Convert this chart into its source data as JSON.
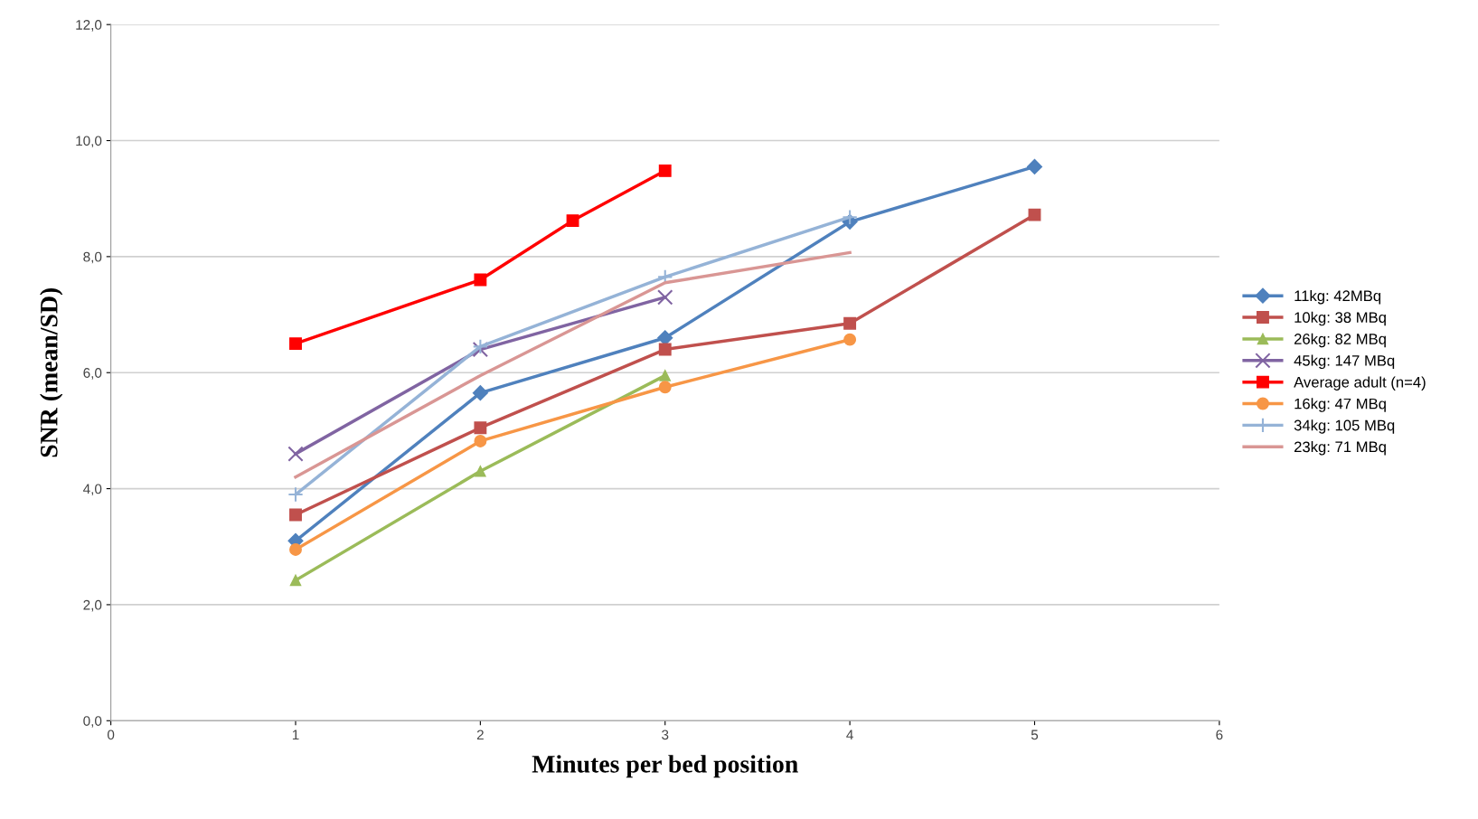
{
  "chart_data": {
    "type": "line",
    "xlabel": "Minutes per bed position",
    "ylabel": "SNR (mean/SD)",
    "xlim": [
      0,
      6
    ],
    "xticks": [
      0,
      1,
      2,
      3,
      4,
      5,
      6
    ],
    "ylim": [
      0,
      12
    ],
    "yticks": [
      {
        "value": 0,
        "label": "0,0"
      },
      {
        "value": 2,
        "label": "2,0"
      },
      {
        "value": 4,
        "label": "4,0"
      },
      {
        "value": 6,
        "label": "6,0"
      },
      {
        "value": 8,
        "label": "8,0"
      },
      {
        "value": 10,
        "label": "10,0"
      },
      {
        "value": 12,
        "label": "12,0"
      }
    ],
    "grid": "y",
    "legend": "right",
    "line_style": "solid",
    "series": [
      {
        "name": "11kg: 42MBq",
        "color": "#4f81bd",
        "marker": "diamond",
        "x": [
          1,
          2,
          3,
          4,
          5
        ],
        "values": [
          3.1,
          5.65,
          6.6,
          8.6,
          9.55
        ]
      },
      {
        "name": "10kg: 38 MBq",
        "color": "#c0504d",
        "marker": "square",
        "x": [
          1,
          2,
          3,
          4,
          5
        ],
        "values": [
          3.55,
          5.05,
          6.4,
          6.85,
          8.72
        ]
      },
      {
        "name": "26kg: 82 MBq",
        "color": "#9bbb59",
        "marker": "triangle",
        "x": [
          1,
          2,
          3
        ],
        "values": [
          2.42,
          4.3,
          5.95
        ]
      },
      {
        "name": "45kg: 147 MBq",
        "color": "#8064a2",
        "marker": "cross",
        "x": [
          1,
          2,
          3
        ],
        "values": [
          4.6,
          6.4,
          7.3
        ]
      },
      {
        "name": "Average adult (n=4)",
        "color": "#ff0000",
        "marker": "square",
        "x": [
          1,
          2,
          2.5,
          3
        ],
        "values": [
          6.5,
          7.6,
          8.62,
          9.48
        ]
      },
      {
        "name": "16kg: 47 MBq",
        "color": "#f79646",
        "marker": "circle",
        "x": [
          1,
          2,
          3,
          4
        ],
        "values": [
          2.95,
          4.82,
          5.75,
          6.57
        ]
      },
      {
        "name": "34kg: 105 MBq",
        "color": "#95b3d7",
        "marker": "plus",
        "x": [
          1,
          2,
          3,
          4
        ],
        "values": [
          3.9,
          6.45,
          7.65,
          8.68
        ]
      },
      {
        "name": "23kg: 71 MBq",
        "color": "#d99694",
        "marker": "none",
        "x": [
          1,
          2,
          3,
          4
        ],
        "values": [
          4.2,
          5.95,
          7.55,
          8.07
        ]
      }
    ]
  }
}
